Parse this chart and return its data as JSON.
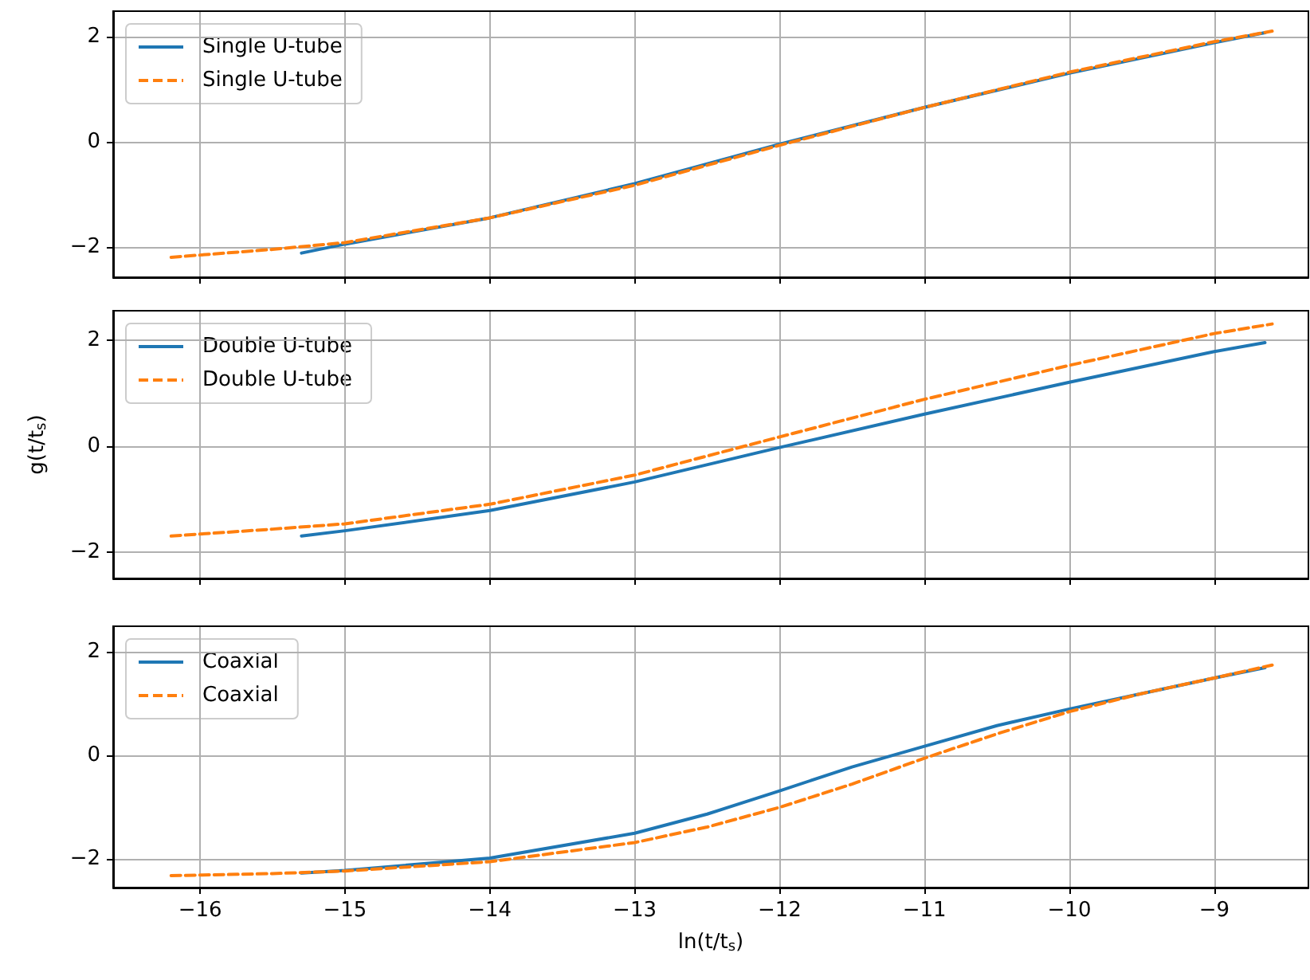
{
  "chart_data": [
    {
      "type": "line",
      "xlim": [
        -16.6,
        -8.35
      ],
      "ylim": [
        -2.58,
        2.48
      ],
      "xticks": [
        -16,
        -15,
        -14,
        -13,
        -12,
        -11,
        -10,
        -9
      ],
      "yticks": [
        -2,
        0,
        2
      ],
      "grid": true,
      "legend": "top left",
      "tick_labels": "y",
      "marker": "none",
      "series": [
        {
          "name": "Single U-tube",
          "color": "#1f77b4",
          "line_style": "solid",
          "x": [
            -15.3,
            -15,
            -14,
            -13,
            -12,
            -11,
            -10,
            -9,
            -8.65
          ],
          "values": [
            -2.12,
            -1.95,
            -1.45,
            -0.8,
            -0.05,
            0.65,
            1.3,
            1.88,
            2.07
          ]
        },
        {
          "name": "Single U-tube",
          "color": "#ff7f0e",
          "line_style": "dashed",
          "x": [
            -16.2,
            -15.5,
            -15,
            -14,
            -13,
            -12,
            -11,
            -10,
            -9,
            -8.6
          ],
          "values": [
            -2.2,
            -2.05,
            -1.92,
            -1.45,
            -0.83,
            -0.07,
            0.65,
            1.32,
            1.9,
            2.1
          ]
        }
      ]
    },
    {
      "type": "line",
      "ylabel": "g(t/t$_{s}$)",
      "xlim": [
        -16.6,
        -8.35
      ],
      "ylim": [
        -2.5,
        2.55
      ],
      "xticks": [
        -16,
        -15,
        -14,
        -13,
        -12,
        -11,
        -10,
        -9
      ],
      "yticks": [
        -2,
        0,
        2
      ],
      "grid": true,
      "legend": "top left",
      "tick_labels": "y",
      "marker": "none",
      "series": [
        {
          "name": "Double U-tube",
          "color": "#1f77b4",
          "line_style": "solid",
          "x": [
            -15.3,
            -15,
            -14,
            -13,
            -12,
            -11,
            -10,
            -9,
            -8.65
          ],
          "values": [
            -1.7,
            -1.6,
            -1.22,
            -0.68,
            -0.03,
            0.6,
            1.2,
            1.78,
            1.95
          ]
        },
        {
          "name": "Double U-tube",
          "color": "#ff7f0e",
          "line_style": "dashed",
          "x": [
            -16.2,
            -15.5,
            -15,
            -14,
            -13,
            -12,
            -11,
            -10,
            -9,
            -8.6
          ],
          "values": [
            -1.7,
            -1.57,
            -1.47,
            -1.1,
            -0.55,
            0.17,
            0.88,
            1.52,
            2.12,
            2.3
          ]
        }
      ]
    },
    {
      "type": "line",
      "xlabel": "ln(t/t$_{s}$)",
      "xlim": [
        -16.6,
        -8.35
      ],
      "ylim": [
        -2.55,
        2.5
      ],
      "xticks": [
        -16,
        -15,
        -14,
        -13,
        -12,
        -11,
        -10,
        -9
      ],
      "yticks": [
        -2,
        0,
        2
      ],
      "grid": true,
      "legend": "top left",
      "marker": "none",
      "series": [
        {
          "name": "Coaxial",
          "color": "#1f77b4",
          "line_style": "solid",
          "x": [
            -15.3,
            -15,
            -14,
            -13,
            -12.5,
            -12,
            -11.5,
            -11,
            -10.5,
            -10,
            -9.5,
            -9,
            -8.65
          ],
          "values": [
            -2.27,
            -2.22,
            -1.98,
            -1.5,
            -1.13,
            -0.68,
            -0.22,
            0.18,
            0.58,
            0.9,
            1.2,
            1.5,
            1.7
          ]
        },
        {
          "name": "Coaxial",
          "color": "#ff7f0e",
          "line_style": "dashed",
          "x": [
            -16.2,
            -15.5,
            -15,
            -14,
            -13,
            -12.5,
            -12,
            -11.5,
            -11,
            -10.5,
            -10,
            -9.5,
            -9,
            -8.6
          ],
          "values": [
            -2.32,
            -2.28,
            -2.23,
            -2.05,
            -1.68,
            -1.38,
            -1.0,
            -0.55,
            -0.05,
            0.42,
            0.85,
            1.2,
            1.5,
            1.75
          ]
        }
      ]
    }
  ]
}
